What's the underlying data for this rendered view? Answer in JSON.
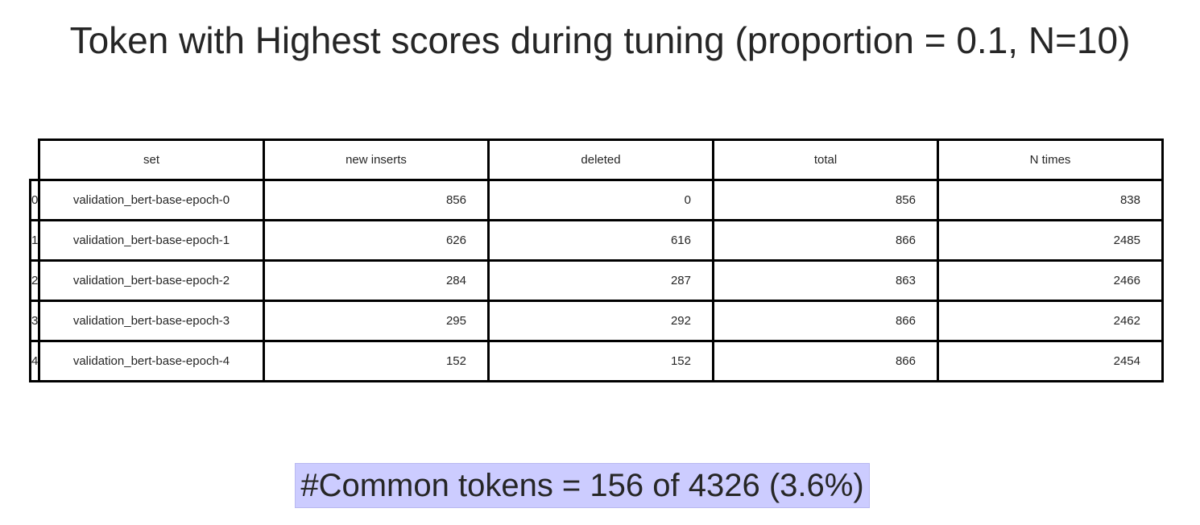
{
  "title": "Token with Highest scores during tuning (proportion = 0.1, N=10)",
  "chart_data": {
    "type": "table",
    "title": "Token with Highest scores during tuning (proportion = 0.1, N=10)",
    "columns": [
      "set",
      "new inserts",
      "deleted",
      "total",
      "N times"
    ],
    "rows": [
      {
        "index": "0",
        "set": "validation_bert-base-epoch-0",
        "new_inserts": "856",
        "deleted": "0",
        "total": "856",
        "n_times": "838"
      },
      {
        "index": "1",
        "set": "validation_bert-base-epoch-1",
        "new_inserts": "626",
        "deleted": "616",
        "total": "866",
        "n_times": "2485"
      },
      {
        "index": "2",
        "set": "validation_bert-base-epoch-2",
        "new_inserts": "284",
        "deleted": "287",
        "total": "863",
        "n_times": "2466"
      },
      {
        "index": "3",
        "set": "validation_bert-base-epoch-3",
        "new_inserts": "295",
        "deleted": "292",
        "total": "866",
        "n_times": "2462"
      },
      {
        "index": "4",
        "set": "validation_bert-base-epoch-4",
        "new_inserts": "152",
        "deleted": "152",
        "total": "866",
        "n_times": "2454"
      }
    ]
  },
  "footer": {
    "text": "#Common tokens = 156 of 4326 (3.6%)",
    "background_color": "#ccccff"
  },
  "colors": {
    "text": "#262626",
    "grid_lines": "#000000"
  }
}
